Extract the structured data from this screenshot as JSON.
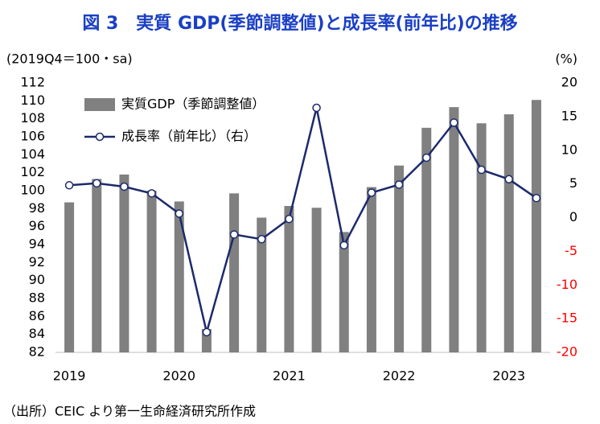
{
  "chart_data": {
    "type": "bar_line",
    "title": "図 3　実質 GDP(季節調整値)と成長率(前年比)の推移",
    "y_axis_label": "(2019Q4＝100・sa)",
    "y2_axis_label": "(%)",
    "source": "（出所）CEIC より第一生命経済研究所作成",
    "categories": [
      "2019",
      null,
      null,
      null,
      "2020",
      null,
      null,
      null,
      "2021",
      null,
      null,
      null,
      "2022",
      null,
      null,
      null,
      "2023",
      null
    ],
    "series": [
      {
        "name": "実質GDP（季節調整値）",
        "type": "bar",
        "axis": "y",
        "color": "#808080",
        "values": [
          98.7,
          101.3,
          101.8,
          100.0,
          98.8,
          84.6,
          99.7,
          97.0,
          98.3,
          98.1,
          95.4,
          100.4,
          102.8,
          107.0,
          109.3,
          107.5,
          108.5,
          110.1
        ]
      },
      {
        "name": "成長率（前年比）（右）",
        "type": "line",
        "axis": "y2",
        "color": "#1c2a6b",
        "values": [
          4.8,
          5.1,
          4.6,
          3.6,
          0.6,
          -17.0,
          -2.5,
          -3.2,
          -0.2,
          16.3,
          -4.1,
          3.7,
          4.9,
          8.9,
          14.1,
          7.1,
          5.7,
          2.9
        ]
      }
    ],
    "ylim": [
      82,
      112
    ],
    "yticks": [
      82,
      84,
      86,
      88,
      90,
      92,
      94,
      96,
      98,
      100,
      102,
      104,
      106,
      108,
      110,
      112
    ],
    "y2lim": [
      -20,
      20
    ],
    "y2ticks": [
      -20,
      -15,
      -10,
      -5,
      0,
      5,
      10,
      15,
      20
    ],
    "y2_negative_tick_color": "#ff0000",
    "legend": "upper left"
  }
}
